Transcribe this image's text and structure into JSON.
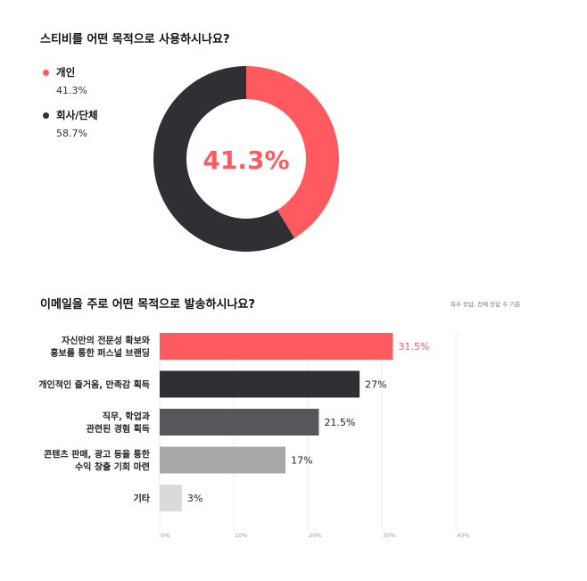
{
  "chart_data": [
    {
      "type": "pie",
      "title": "스티비를 어떤 목적으로 사용하시나요?",
      "center_label": "41.3%",
      "slices": [
        {
          "name": "개인",
          "value": 41.3,
          "label": "41.3%",
          "color": "#FF5A5F"
        },
        {
          "name": "회사/단체",
          "value": 58.7,
          "label": "58.7%",
          "color": "#2E3033"
        }
      ]
    },
    {
      "type": "bar",
      "orientation": "horizontal",
      "title": "이메일을 주로 어떤 목적으로 발송하시나요?",
      "note": "복수 응답, 전체 응답 수 기준",
      "categories": [
        [
          "자신만의 전문성 확보와",
          "홍보를 통한 퍼스널 브랜딩"
        ],
        [
          "개인적인 즐거움, 만족감 획득"
        ],
        [
          "직무, 학업과",
          "관련된 경험 획득"
        ],
        [
          "콘텐츠 판매, 광고 등을 통한",
          "수익 창출 기회 마련"
        ],
        [
          "기타"
        ]
      ],
      "values": [
        31.5,
        27,
        21.5,
        17,
        3
      ],
      "value_labels": [
        "31.5%",
        "27%",
        "21.5%",
        "17%",
        "3%"
      ],
      "bar_colors": [
        "#FF5A5F",
        "#2E3033",
        "#55575A",
        "#A7A8AA",
        "#D9DADC"
      ],
      "value_label_colors": [
        "#FF5A5F",
        "#222222",
        "#222222",
        "#222222",
        "#222222"
      ],
      "xlim": [
        0,
        40
      ],
      "xticks": [
        "0%",
        "10%",
        "20%",
        "30%",
        "40%"
      ],
      "grid": true
    }
  ]
}
